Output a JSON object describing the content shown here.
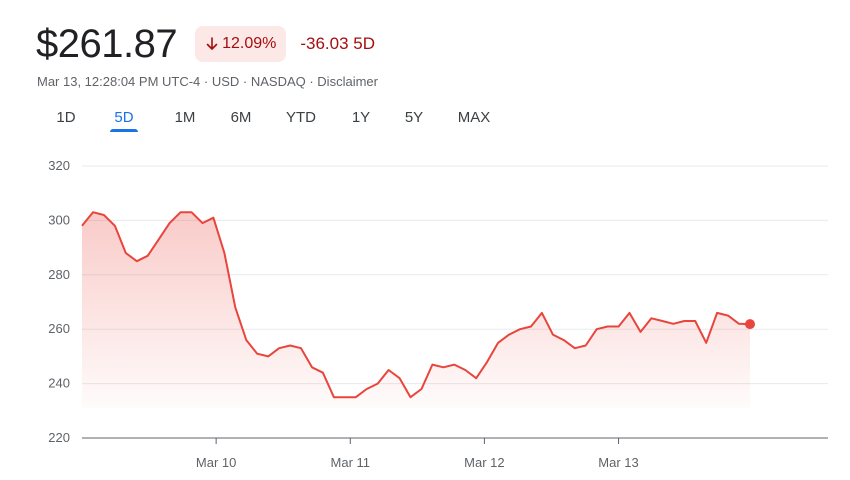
{
  "quote": {
    "price": "$261.87",
    "percent_change": "12.09%",
    "change_direction": "down",
    "change_text": "-36.03 5D",
    "meta": "Mar 13, 12:28:04 PM UTC-4 · USD · NASDAQ · Disclaimer"
  },
  "tabs": [
    {
      "label": "1D",
      "active": false
    },
    {
      "label": "5D",
      "active": true
    },
    {
      "label": "1M",
      "active": false
    },
    {
      "label": "6M",
      "active": false
    },
    {
      "label": "YTD",
      "active": false
    },
    {
      "label": "1Y",
      "active": false
    },
    {
      "label": "5Y",
      "active": false
    },
    {
      "label": "MAX",
      "active": false
    }
  ],
  "colors": {
    "negative": "#a50e0e",
    "negative_bg": "#fce8e6",
    "line": "#e8453c",
    "active_tab": "#1a73e8"
  },
  "chart_data": {
    "type": "area",
    "yticks": [
      320,
      300,
      280,
      260,
      240,
      220
    ],
    "ylim": [
      220,
      320
    ],
    "xticks": [
      "Mar 10",
      "Mar 11",
      "Mar 12",
      "Mar 13"
    ],
    "x_span_days": [
      0,
      4.98
    ],
    "grid": true,
    "values": [
      298,
      303,
      302,
      298,
      288,
      285,
      287,
      293,
      299,
      303,
      303,
      299,
      301,
      288,
      268,
      256,
      251,
      250,
      253,
      254,
      253,
      246,
      244,
      235,
      235,
      235,
      238,
      240,
      245,
      242,
      235,
      238,
      247,
      246,
      247,
      245,
      242,
      248,
      255,
      258,
      260,
      261,
      266,
      258,
      256,
      253,
      254,
      260,
      261,
      261,
      266,
      259,
      264,
      263,
      262,
      263,
      263,
      255,
      266,
      265,
      262,
      261.87
    ]
  }
}
